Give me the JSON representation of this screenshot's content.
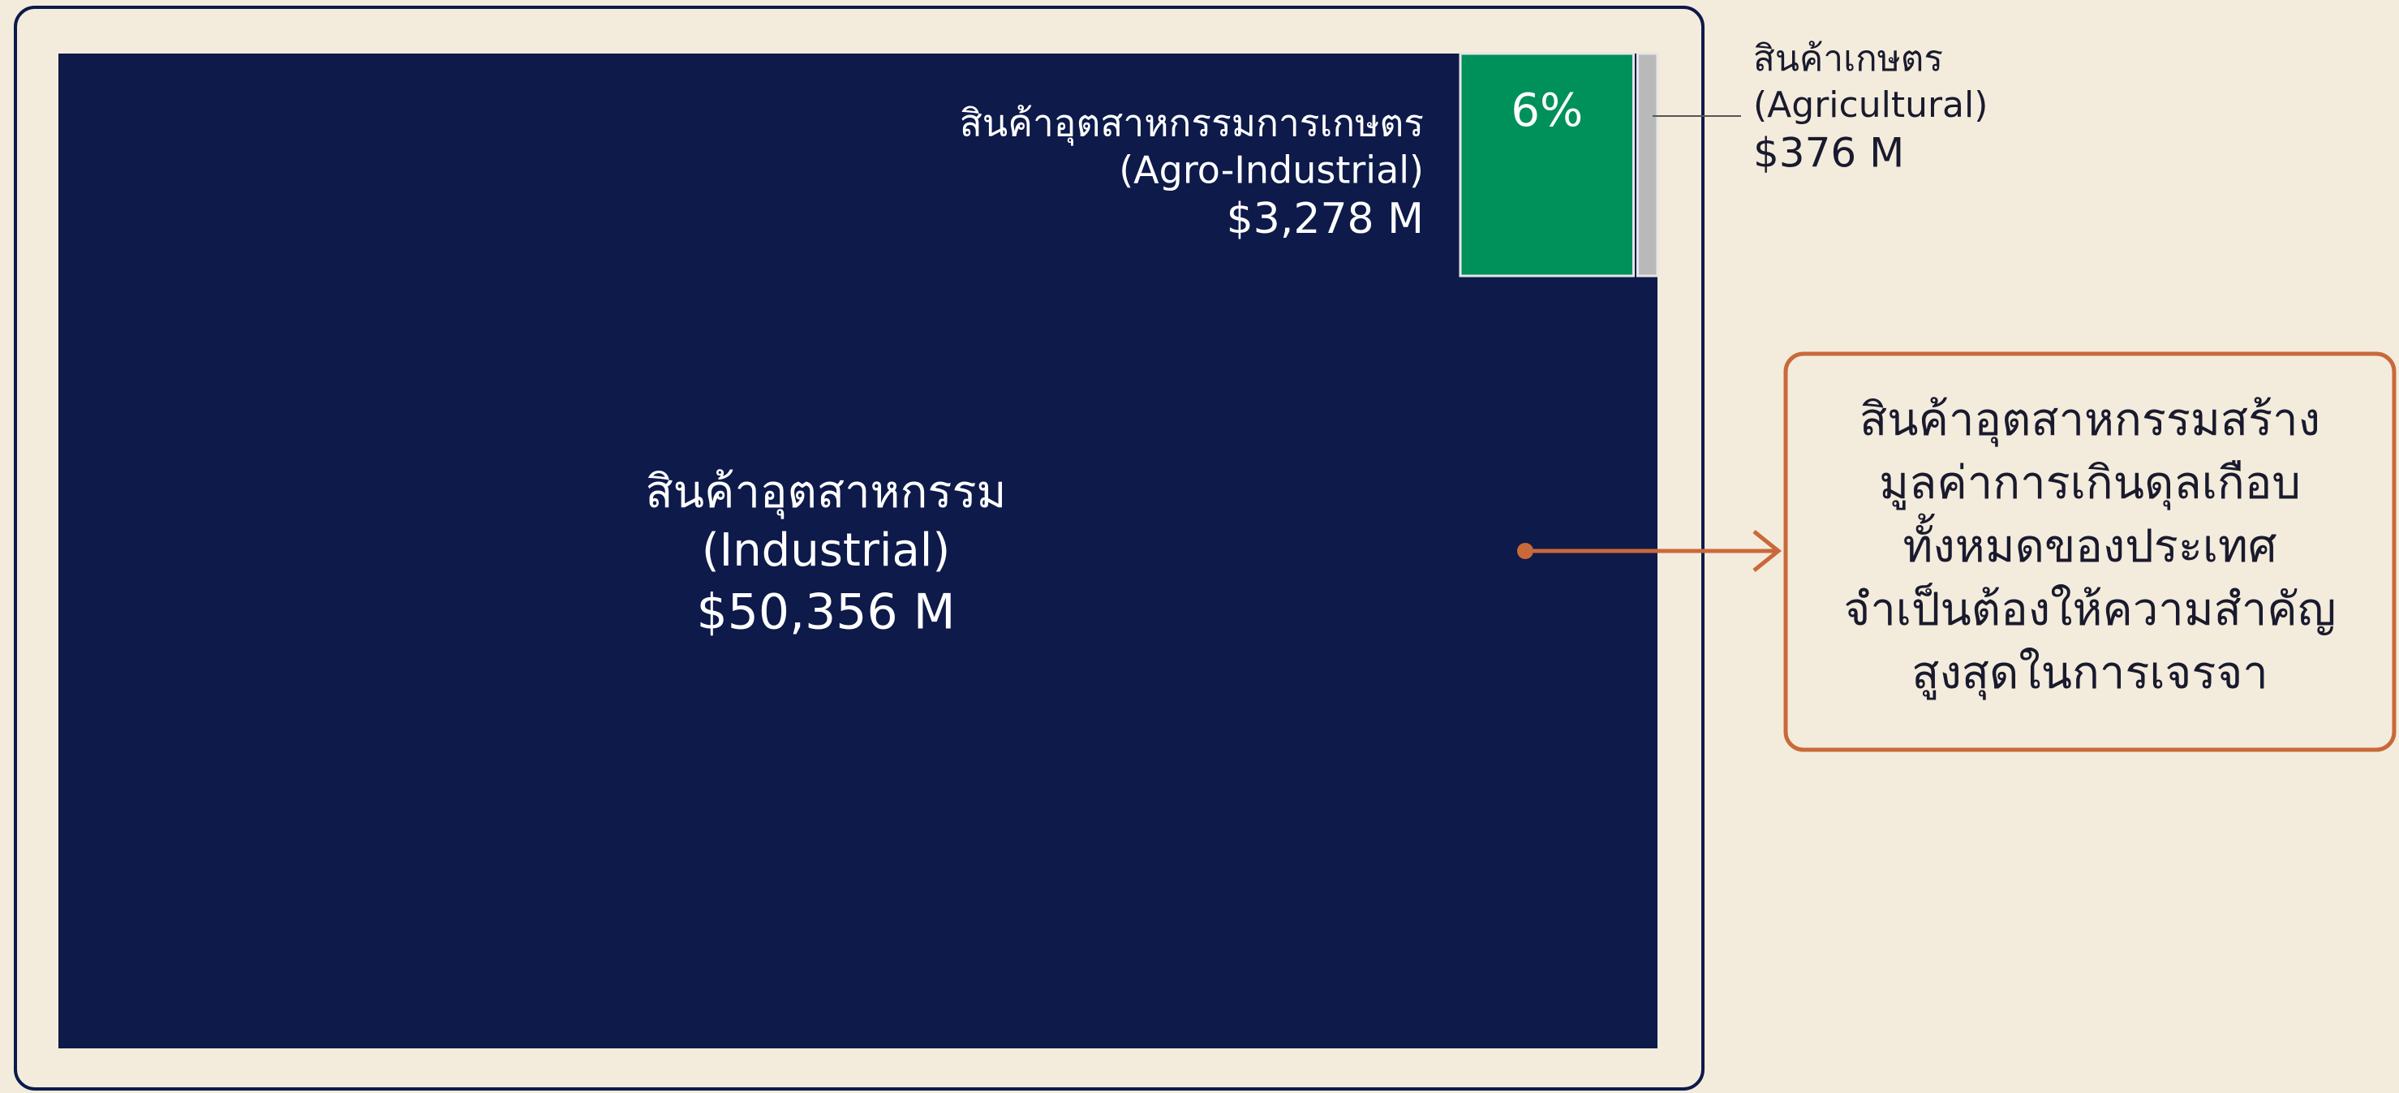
{
  "chart_data": {
    "type": "treemap",
    "categories": [
      "สินค้าอุตสาหกรรม",
      "สินค้าอุตสาหกรรมการเกษตร",
      "สินค้าเกษตร"
    ],
    "category_subtitles": [
      "(Industrial)",
      "(Agro-Industrial)",
      "(Agricultural)"
    ],
    "values": [
      50356,
      3278,
      376
    ],
    "value_labels": [
      "$50,356 M",
      "$3,278 M",
      "$376 M"
    ],
    "colors": [
      "#0d1a4a",
      "#00905a",
      "#b9b9b9"
    ],
    "share_annotation": {
      "value": 6,
      "label": "6%"
    },
    "callout": [
      "สินค้าอุตสาหกรรมสร้าง",
      "มูลค่าการเกินดุลเกือบ",
      "ทั้งหมดของประเทศ",
      "จำเป็นต้องให้ความสำคัญ",
      "สูงสุดในการเจรจา"
    ],
    "callout_color": "#c9693a"
  }
}
